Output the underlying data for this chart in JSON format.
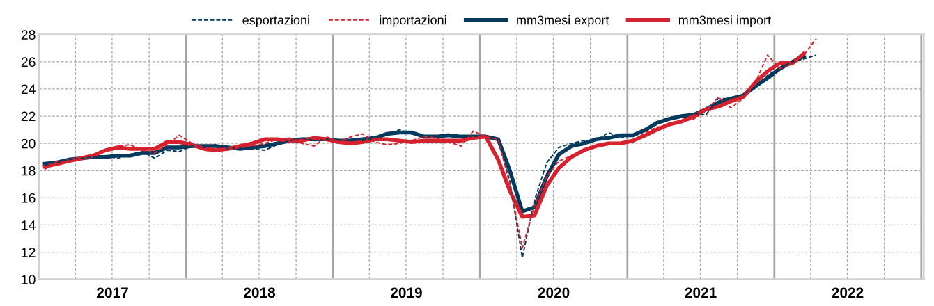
{
  "chart_data": {
    "type": "line",
    "x": [
      "2017-01-15",
      "2017-02-15",
      "2017-03-15",
      "2017-04-15",
      "2017-05-15",
      "2017-06-15",
      "2017-07-15",
      "2017-08-15",
      "2017-09-15",
      "2017-10-15",
      "2017-11-15",
      "2017-12-15",
      "2018-01-15",
      "2018-02-15",
      "2018-03-15",
      "2018-04-15",
      "2018-05-15",
      "2018-06-15",
      "2018-07-15",
      "2018-08-15",
      "2018-09-15",
      "2018-10-15",
      "2018-11-15",
      "2018-12-15",
      "2019-01-15",
      "2019-02-15",
      "2019-03-15",
      "2019-04-15",
      "2019-05-15",
      "2019-06-15",
      "2019-07-15",
      "2019-08-15",
      "2019-09-15",
      "2019-10-15",
      "2019-11-15",
      "2019-12-15",
      "2020-01-15",
      "2020-02-15",
      "2020-03-15",
      "2020-04-15",
      "2020-05-15",
      "2020-06-15",
      "2020-07-15",
      "2020-08-15",
      "2020-09-15",
      "2020-10-15",
      "2020-11-15",
      "2020-12-15",
      "2021-01-15",
      "2021-02-15",
      "2021-03-15",
      "2021-04-15",
      "2021-05-15",
      "2021-06-15",
      "2021-07-15",
      "2021-08-15",
      "2021-09-15",
      "2021-10-15",
      "2021-11-15",
      "2021-12-15",
      "2022-01-15",
      "2022-02-15",
      "2022-03-15",
      "2022-04-15"
    ],
    "series": [
      {
        "name": "esportazioni",
        "color": "#003a5d",
        "line_style": "dashed",
        "values": [
          18.4,
          18.6,
          18.8,
          18.9,
          19.0,
          19.1,
          18.9,
          19.2,
          19.4,
          18.9,
          19.5,
          19.4,
          19.8,
          19.7,
          19.9,
          19.6,
          19.7,
          19.6,
          19.5,
          19.9,
          20.2,
          20.4,
          20.2,
          20.3,
          20.2,
          20.4,
          20.2,
          20.4,
          20.6,
          21.0,
          20.7,
          20.5,
          20.5,
          20.7,
          20.5,
          20.5,
          20.6,
          20.3,
          17.2,
          11.6,
          15.8,
          18.6,
          19.7,
          20.0,
          20.2,
          20.2,
          20.8,
          20.4,
          20.6,
          21.0,
          21.6,
          21.8,
          21.9,
          22.2,
          22.1,
          23.3,
          23.3,
          23.6,
          24.2,
          25.0,
          25.6,
          26.0,
          26.2,
          26.5
        ]
      },
      {
        "name": "importazioni",
        "color": "#d6212f",
        "line_style": "dashed",
        "values": [
          18.1,
          18.7,
          18.6,
          19.0,
          19.2,
          19.5,
          19.8,
          19.9,
          19.5,
          19.3,
          19.9,
          20.6,
          20.0,
          19.5,
          19.4,
          19.6,
          19.7,
          19.8,
          20.0,
          20.3,
          20.4,
          20.0,
          19.8,
          20.5,
          20.1,
          20.5,
          20.7,
          20.1,
          19.9,
          20.0,
          20.2,
          20.5,
          20.4,
          20.1,
          19.8,
          20.9,
          20.5,
          20.3,
          17.0,
          12.3,
          15.4,
          17.6,
          18.7,
          19.1,
          19.5,
          19.8,
          19.9,
          20.0,
          20.2,
          20.8,
          21.2,
          21.3,
          21.6,
          21.8,
          22.4,
          23.4,
          22.6,
          23.3,
          24.5,
          26.5,
          25.5,
          25.8,
          26.5,
          27.7
        ]
      },
      {
        "name": "mm3mesi export",
        "color": "#003a5d",
        "line_style": "solid",
        "values": [
          18.5,
          18.6,
          18.8,
          18.9,
          19.0,
          19.0,
          19.1,
          19.1,
          19.3,
          19.3,
          19.7,
          19.7,
          19.8,
          19.8,
          19.8,
          19.7,
          19.6,
          19.7,
          19.8,
          20.0,
          20.2,
          20.3,
          20.3,
          20.3,
          20.2,
          20.2,
          20.3,
          20.4,
          20.7,
          20.8,
          20.8,
          20.5,
          20.5,
          20.6,
          20.5,
          20.5,
          20.5,
          20.3,
          18.0,
          15.0,
          15.3,
          17.6,
          19.2,
          19.8,
          20.0,
          20.3,
          20.4,
          20.6,
          20.6,
          21.0,
          21.5,
          21.8,
          22.0,
          22.1,
          22.5,
          23.0,
          23.3,
          23.5,
          24.2,
          24.8,
          25.5,
          26.0,
          26.4,
          null
        ]
      },
      {
        "name": "mm3mesi import",
        "color": "#d6212f",
        "line_style": "solid",
        "values": [
          18.3,
          18.5,
          18.7,
          18.9,
          19.1,
          19.5,
          19.7,
          19.6,
          19.6,
          19.6,
          20.1,
          20.1,
          19.9,
          19.6,
          19.5,
          19.6,
          19.8,
          20.0,
          20.3,
          20.3,
          20.2,
          20.2,
          20.4,
          20.3,
          20.1,
          20.0,
          20.1,
          20.3,
          20.3,
          20.2,
          20.1,
          20.2,
          20.2,
          20.2,
          20.2,
          20.4,
          20.5,
          18.8,
          16.5,
          14.6,
          14.7,
          16.9,
          18.2,
          19.0,
          19.5,
          19.8,
          20.0,
          20.0,
          20.2,
          20.6,
          21.0,
          21.4,
          21.6,
          22.0,
          22.5,
          22.7,
          23.1,
          23.4,
          24.5,
          25.3,
          25.9,
          25.9,
          26.6,
          null
        ]
      }
    ],
    "xlim": [
      "2017-01-01",
      "2023-01-07"
    ],
    "xticks": [
      {
        "value": "2017-07-02",
        "label": "2017"
      },
      {
        "value": "2018-01-01",
        "label": null
      },
      {
        "value": "2018-07-02",
        "label": "2018"
      },
      {
        "value": "2019-01-01",
        "label": null
      },
      {
        "value": "2019-07-02",
        "label": "2019"
      },
      {
        "value": "2020-01-01",
        "label": null
      },
      {
        "value": "2020-07-02",
        "label": "2020"
      },
      {
        "value": "2021-01-01",
        "label": null
      },
      {
        "value": "2021-07-02",
        "label": "2021"
      },
      {
        "value": "2022-01-01",
        "label": null
      },
      {
        "value": "2022-07-02",
        "label": "2022"
      },
      {
        "value": "2023-01-01",
        "label": null
      }
    ],
    "ylim": [
      10,
      28
    ],
    "yticks": [
      10,
      12,
      14,
      16,
      18,
      20,
      22,
      24,
      26,
      28
    ],
    "grid": true,
    "legend": "top"
  }
}
